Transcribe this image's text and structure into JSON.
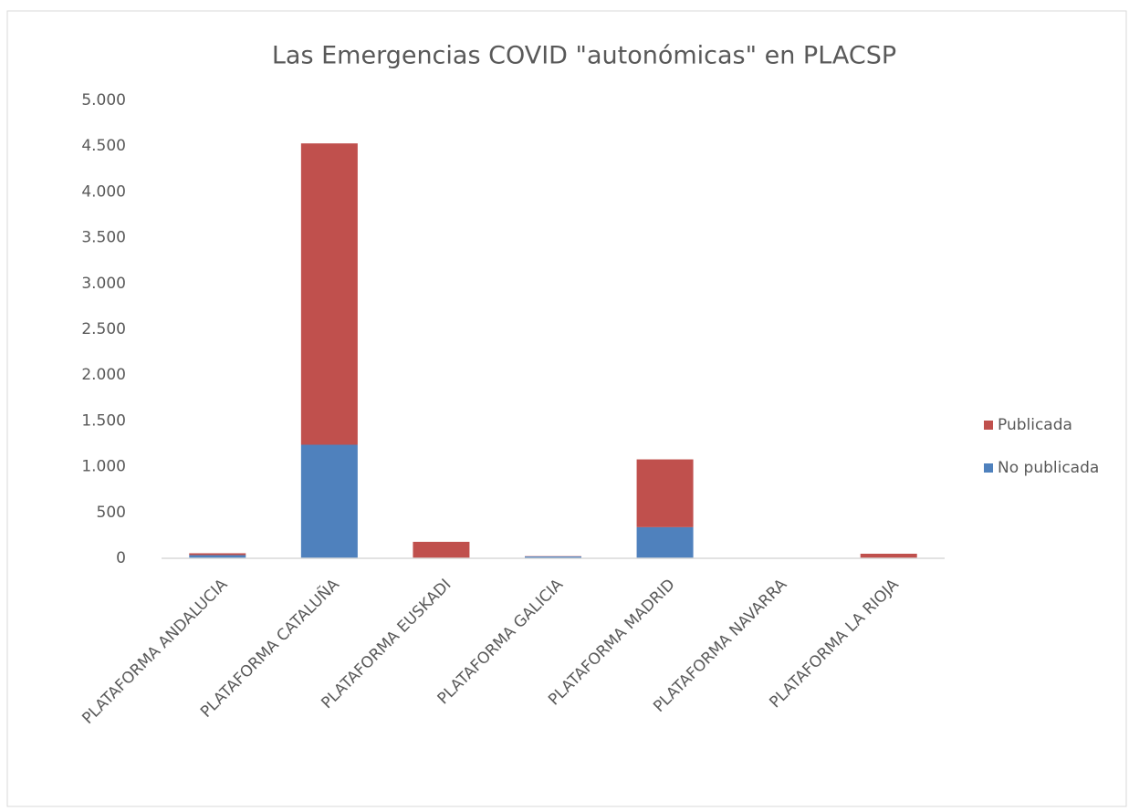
{
  "chart_data": {
    "type": "stacked_bar",
    "title": "Las Emergencias COVID \"autonómicas\" en PLACSP",
    "categories": [
      "PLATAFORMA ANDALUCIA",
      "PLATAFORMA CATALUÑA",
      "PLATAFORMA EUSKADI",
      "PLATAFORMA GALICIA",
      "PLATAFORMA MADRID",
      "PLATAFORMA NAVARRA",
      "PLATAFORMA LA RIOJA"
    ],
    "series": [
      {
        "name": "No publicada",
        "color": "#4f81bd",
        "values": [
          35,
          1240,
          5,
          20,
          340,
          3,
          5
        ]
      },
      {
        "name": "Publicada",
        "color": "#c0504d",
        "values": [
          20,
          3290,
          175,
          3,
          740,
          2,
          45
        ]
      }
    ],
    "ylim": [
      0,
      5000
    ],
    "yticks": [
      0,
      500,
      {
        "value": 1000,
        "label": "1.000"
      },
      {
        "value": 1500,
        "label": "1.500"
      },
      {
        "value": 2000,
        "label": "2.000"
      },
      {
        "value": 2500,
        "label": "2.500"
      },
      {
        "value": 3000,
        "label": "3.000"
      },
      {
        "value": 3500,
        "label": "3.500"
      },
      {
        "value": 4000,
        "label": "4.000"
      },
      {
        "value": 4500,
        "label": "4.500"
      },
      {
        "value": 5000,
        "label": "5.000"
      }
    ],
    "grid": false,
    "legend": "right"
  }
}
